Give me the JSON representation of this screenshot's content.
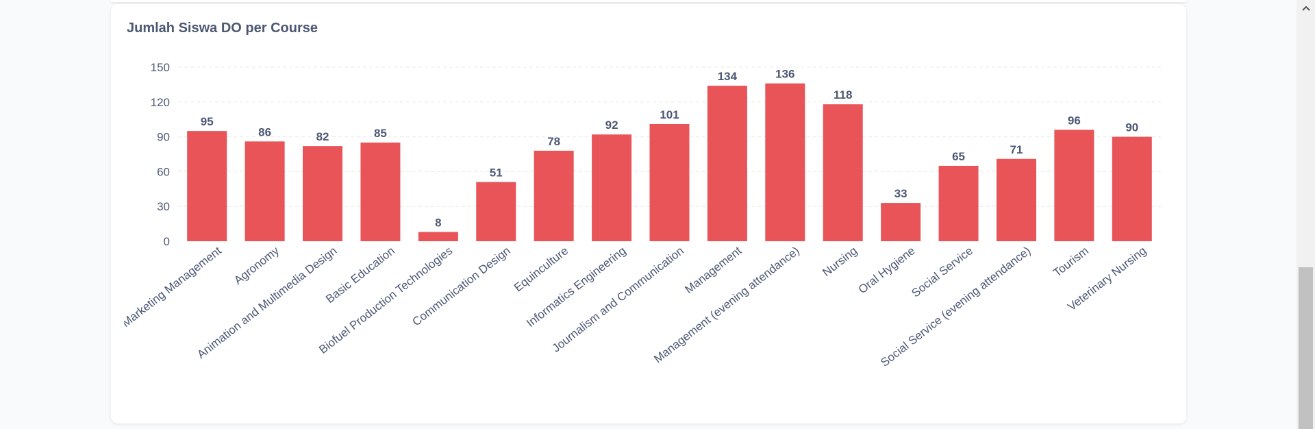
{
  "card": {
    "title": "Jumlah Siswa DO per Course"
  },
  "colors": {
    "bar": "#e85457",
    "text": "#4c5773",
    "grid": "#e8e9ed"
  },
  "scrollbar": {
    "up_icon": "chevron-up-icon"
  },
  "chart_data": {
    "type": "bar",
    "title": "Jumlah Siswa DO per Course",
    "xlabel": "",
    "ylabel": "",
    "ylim": [
      0,
      150
    ],
    "yticks": [
      0,
      30,
      60,
      90,
      120,
      150
    ],
    "grid": true,
    "categories": [
      "Advertising and Marketing Management",
      "Agronomy",
      "Animation and Multimedia Design",
      "Basic Education",
      "Biofuel Production Technologies",
      "Communication Design",
      "Equinculture",
      "Informatics Engineering",
      "Journalism and Communication",
      "Management",
      "Management (evening attendance)",
      "Nursing",
      "Oral Hygiene",
      "Social Service",
      "Social Service (evening attendance)",
      "Tourism",
      "Veterinary Nursing"
    ],
    "values": [
      95,
      86,
      82,
      85,
      8,
      51,
      78,
      92,
      101,
      134,
      136,
      118,
      33,
      65,
      71,
      96,
      90
    ]
  }
}
